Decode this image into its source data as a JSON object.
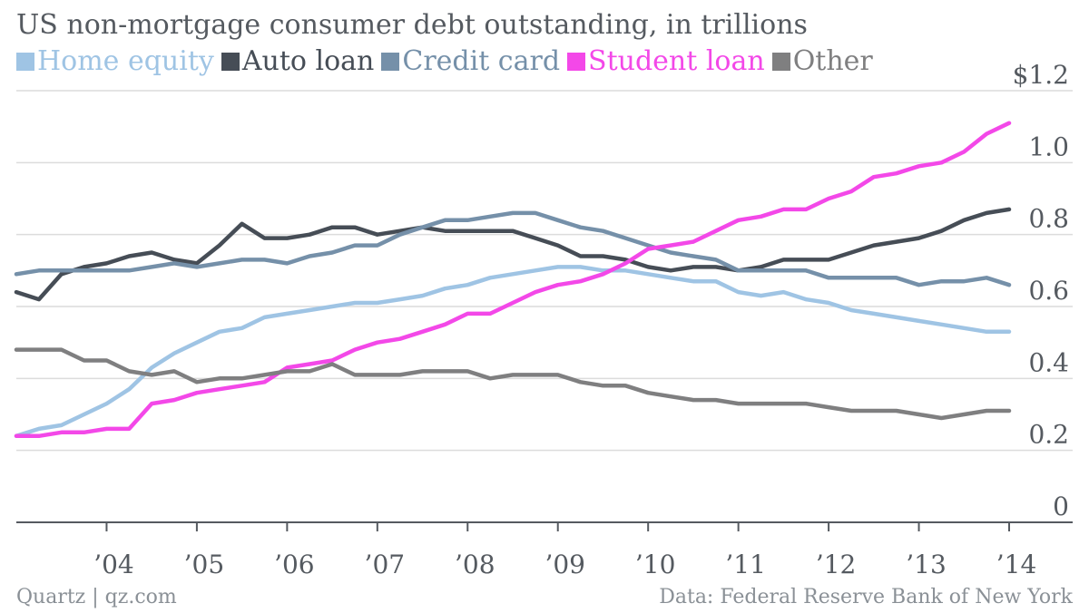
{
  "title": "US non-mortgage consumer debt outstanding, in trillions",
  "footer": {
    "left": "Quartz | qz.com",
    "right": "Data: Federal Reserve Bank of New York"
  },
  "chart_data": {
    "type": "line",
    "title": "US non-mortgage consumer debt outstanding, in trillions",
    "xlabel": "",
    "ylabel": "",
    "y_unit_prefix": "$",
    "ylim": [
      0,
      1.2
    ],
    "y_ticks": [
      0,
      0.2,
      0.4,
      0.6,
      0.8,
      1.0,
      1.2
    ],
    "y_tick_labels": [
      "0",
      "0.2",
      "0.4",
      "0.6",
      "0.8",
      "1.0",
      "$1.2"
    ],
    "x_range": [
      2003.0,
      2014.0
    ],
    "x_ticks": [
      2004,
      2005,
      2006,
      2007,
      2008,
      2009,
      2010,
      2011,
      2012,
      2013,
      2014
    ],
    "x_tick_labels": [
      "’04",
      "’05",
      "’06",
      "’07",
      "’08",
      "’09",
      "’10",
      "’11",
      "’12",
      "’13",
      "’14"
    ],
    "grid": "horizontal",
    "legend_position": "top-left",
    "x": [
      2003.0,
      2003.25,
      2003.5,
      2003.75,
      2004.0,
      2004.25,
      2004.5,
      2004.75,
      2005.0,
      2005.25,
      2005.5,
      2005.75,
      2006.0,
      2006.25,
      2006.5,
      2006.75,
      2007.0,
      2007.25,
      2007.5,
      2007.75,
      2008.0,
      2008.25,
      2008.5,
      2008.75,
      2009.0,
      2009.25,
      2009.5,
      2009.75,
      2010.0,
      2010.25,
      2010.5,
      2010.75,
      2011.0,
      2011.25,
      2011.5,
      2011.75,
      2012.0,
      2012.25,
      2012.5,
      2012.75,
      2013.0,
      2013.25,
      2013.5,
      2013.75,
      2014.0
    ],
    "series": [
      {
        "name": "Home equity",
        "color": "#9fc4e4",
        "values": [
          0.24,
          0.26,
          0.27,
          0.3,
          0.33,
          0.37,
          0.43,
          0.47,
          0.5,
          0.53,
          0.54,
          0.57,
          0.58,
          0.59,
          0.6,
          0.61,
          0.61,
          0.62,
          0.63,
          0.65,
          0.66,
          0.68,
          0.69,
          0.7,
          0.71,
          0.71,
          0.7,
          0.7,
          0.69,
          0.68,
          0.67,
          0.67,
          0.64,
          0.63,
          0.64,
          0.62,
          0.61,
          0.59,
          0.58,
          0.57,
          0.56,
          0.55,
          0.54,
          0.53,
          0.53
        ]
      },
      {
        "name": "Auto loan",
        "color": "#464d56",
        "values": [
          0.64,
          0.62,
          0.69,
          0.71,
          0.72,
          0.74,
          0.75,
          0.73,
          0.72,
          0.77,
          0.83,
          0.79,
          0.79,
          0.8,
          0.82,
          0.82,
          0.8,
          0.81,
          0.82,
          0.81,
          0.81,
          0.81,
          0.81,
          0.79,
          0.77,
          0.74,
          0.74,
          0.73,
          0.71,
          0.7,
          0.71,
          0.71,
          0.7,
          0.71,
          0.73,
          0.73,
          0.73,
          0.75,
          0.77,
          0.78,
          0.79,
          0.81,
          0.84,
          0.86,
          0.87
        ]
      },
      {
        "name": "Credit card",
        "color": "#7590a9",
        "values": [
          0.69,
          0.7,
          0.7,
          0.7,
          0.7,
          0.7,
          0.71,
          0.72,
          0.71,
          0.72,
          0.73,
          0.73,
          0.72,
          0.74,
          0.75,
          0.77,
          0.77,
          0.8,
          0.82,
          0.84,
          0.84,
          0.85,
          0.86,
          0.86,
          0.84,
          0.82,
          0.81,
          0.79,
          0.77,
          0.75,
          0.74,
          0.73,
          0.7,
          0.7,
          0.7,
          0.7,
          0.68,
          0.68,
          0.68,
          0.68,
          0.66,
          0.67,
          0.67,
          0.68,
          0.66
        ]
      },
      {
        "name": "Student loan",
        "color": "#f348e8",
        "values": [
          0.24,
          0.24,
          0.25,
          0.25,
          0.26,
          0.26,
          0.33,
          0.34,
          0.36,
          0.37,
          0.38,
          0.39,
          0.43,
          0.44,
          0.45,
          0.48,
          0.5,
          0.51,
          0.53,
          0.55,
          0.58,
          0.58,
          0.61,
          0.64,
          0.66,
          0.67,
          0.69,
          0.72,
          0.76,
          0.77,
          0.78,
          0.81,
          0.84,
          0.85,
          0.87,
          0.87,
          0.9,
          0.92,
          0.96,
          0.97,
          0.99,
          1.0,
          1.03,
          1.08,
          1.11
        ]
      },
      {
        "name": "Other",
        "color": "#7f7f80",
        "values": [
          0.48,
          0.48,
          0.48,
          0.45,
          0.45,
          0.42,
          0.41,
          0.42,
          0.39,
          0.4,
          0.4,
          0.41,
          0.42,
          0.42,
          0.44,
          0.41,
          0.41,
          0.41,
          0.42,
          0.42,
          0.42,
          0.4,
          0.41,
          0.41,
          0.41,
          0.39,
          0.38,
          0.38,
          0.36,
          0.35,
          0.34,
          0.34,
          0.33,
          0.33,
          0.33,
          0.33,
          0.32,
          0.31,
          0.31,
          0.31,
          0.3,
          0.29,
          0.3,
          0.31,
          0.31
        ]
      }
    ]
  }
}
